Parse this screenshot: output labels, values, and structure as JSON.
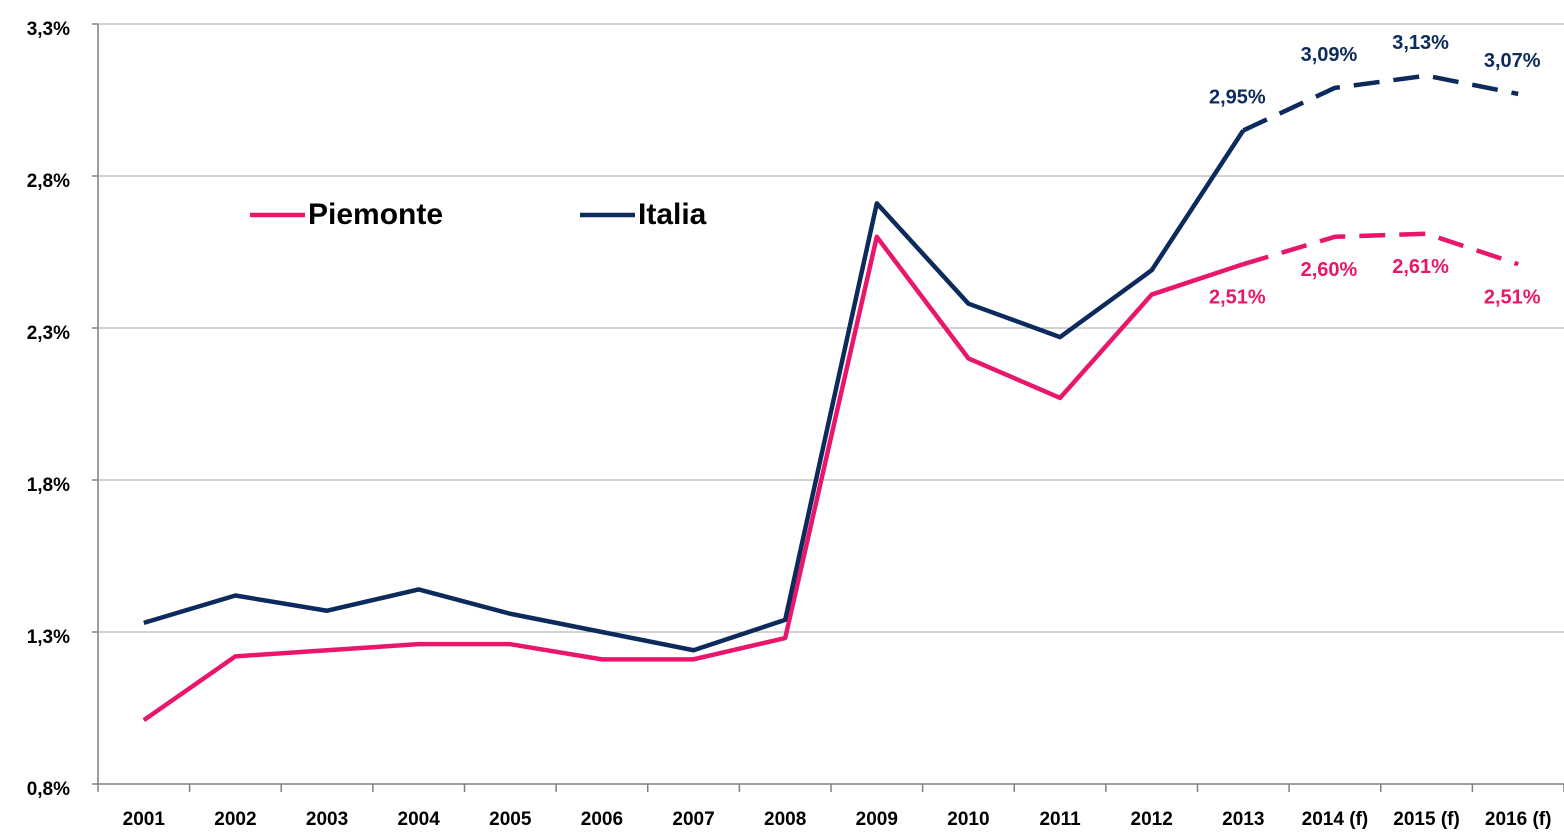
{
  "chart_data": {
    "type": "line",
    "categories": [
      "2001",
      "2002",
      "2003",
      "2004",
      "2005",
      "2006",
      "2007",
      "2008",
      "2009",
      "2010",
      "2011",
      "2012",
      "2013",
      "2014 (f)",
      "2015 (f)",
      "2016 (f)"
    ],
    "series": [
      {
        "name": "Piemonte",
        "color": "#e8176b",
        "dashed_from": 12,
        "label_position": "below",
        "values": [
          1.01,
          1.22,
          1.24,
          1.26,
          1.26,
          1.21,
          1.21,
          1.28,
          2.6,
          2.2,
          2.07,
          2.41,
          2.51,
          2.6,
          2.61,
          2.51
        ],
        "value_labels": [
          null,
          null,
          null,
          null,
          null,
          null,
          null,
          null,
          null,
          null,
          null,
          null,
          "2,51%",
          "2,60%",
          "2,61%",
          "2,51%"
        ]
      },
      {
        "name": "Italia",
        "color": "#0d2a5c",
        "dashed_from": 12,
        "label_position": "above",
        "values": [
          1.33,
          1.42,
          1.37,
          1.44,
          1.36,
          1.3,
          1.24,
          1.34,
          2.71,
          2.38,
          2.27,
          2.49,
          2.95,
          3.09,
          3.13,
          3.07
        ],
        "value_labels": [
          null,
          null,
          null,
          null,
          null,
          null,
          null,
          null,
          null,
          null,
          null,
          null,
          "2,95%",
          "3,09%",
          "3,13%",
          "3,07%"
        ]
      }
    ],
    "ylim": [
      0.8,
      3.3
    ],
    "yticks": [
      {
        "value": 0.8,
        "label": "0,8%"
      },
      {
        "value": 1.3,
        "label": "1,3%"
      },
      {
        "value": 1.8,
        "label": "1,8%"
      },
      {
        "value": 2.3,
        "label": "2,3%"
      },
      {
        "value": 2.8,
        "label": "2,8%"
      },
      {
        "value": 3.3,
        "label": "3,3%"
      }
    ],
    "grid": true
  }
}
